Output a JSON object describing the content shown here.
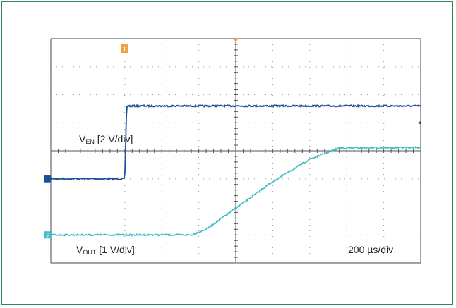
{
  "chart_data": {
    "type": "line",
    "title": "",
    "grid": true,
    "x": {
      "divisions": 10,
      "scale_label": "200 µs/div",
      "range_us": [
        -1000,
        1000
      ]
    },
    "channels": [
      {
        "id": "1",
        "marker": "",
        "name_main": "V",
        "name_sub": "EN",
        "scale": "[2 V/div]",
        "color": "#1f4e9a",
        "unit": "div",
        "points": [
          [
            -1000,
            -1.0
          ],
          [
            -600,
            -1.0
          ],
          [
            -590,
            1.6
          ],
          [
            1000,
            1.6
          ]
        ]
      },
      {
        "id": "2",
        "marker": "2",
        "name_main": "V",
        "name_sub": "OUT",
        "scale": "[1 V/div]",
        "color": "#3cbcc4",
        "unit": "div",
        "points": [
          [
            -1000,
            -3.0
          ],
          [
            -240,
            -3.0
          ],
          [
            -160,
            -2.8
          ],
          [
            0,
            -2.05
          ],
          [
            200,
            -1.1
          ],
          [
            400,
            -0.3
          ],
          [
            560,
            0.1
          ],
          [
            1000,
            0.12
          ]
        ]
      }
    ],
    "trigger_marker": "T"
  }
}
